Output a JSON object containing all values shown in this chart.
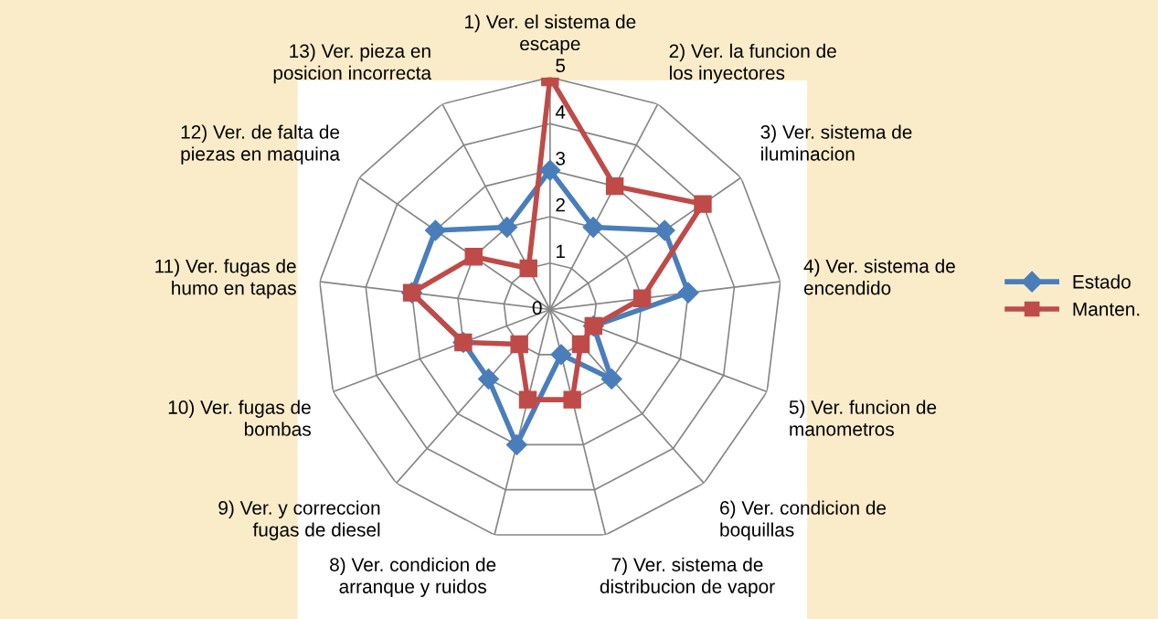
{
  "chart_data": {
    "type": "radar",
    "categories": [
      "1) Ver. el sistema de escape",
      "2) Ver. la funcion de los inyectores",
      "3) Ver. sistema de iluminacion",
      "4) Ver. sistema de encendido",
      "5) Ver. funcion de manometros",
      "6) Ver. condicion de boquillas",
      "7) Ver. sistema de distribucion de vapor",
      "8) Ver. condicion de arranque y ruidos",
      "9) Ver. y correccion fugas de diesel",
      "10) Ver. fugas de bombas",
      "11) Ver. fugas de humo en tapas",
      "12) Ver. de falta de piezas en maquina",
      "13) Ver. pieza en posicion incorrecta"
    ],
    "series": [
      {
        "name": "Estado",
        "color": "#4a7ebb",
        "marker": "diamond",
        "values": [
          3,
          2,
          3,
          3,
          1,
          2,
          1,
          3,
          2,
          2,
          3,
          3,
          2
        ]
      },
      {
        "name": "Manten.",
        "color": "#be4b48",
        "marker": "square",
        "values": [
          5,
          3,
          4,
          2,
          1,
          1,
          2,
          2,
          1,
          2,
          3,
          2,
          1
        ]
      }
    ],
    "ylim": [
      0,
      5
    ],
    "yticks": [
      0,
      1,
      2,
      3,
      4,
      5
    ],
    "grid": true,
    "legend": "right",
    "line_style": "solid"
  }
}
